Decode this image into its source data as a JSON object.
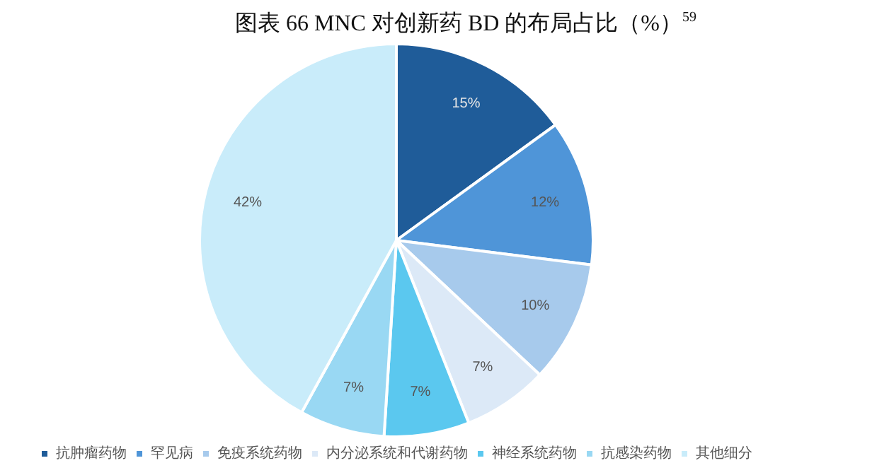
{
  "chart_data": {
    "type": "pie",
    "title": "图表 66 MNC 对创新药 BD 的布局占比（%）$^{59}$",
    "categories": [
      "抗肿瘤药物",
      "罕见病",
      "免疫系统药物",
      "内分泌系统和代谢药物",
      "神经系统药物",
      "抗感染药物",
      "其他细分"
    ],
    "values": [
      15,
      12,
      10,
      7,
      7,
      7,
      42
    ],
    "colors": [
      "#1f5c99",
      "#4f95d8",
      "#a7caec",
      "#dce9f7",
      "#5bc8ef",
      "#99d8f3",
      "#c9ecfa"
    ],
    "value_labels": [
      "15%",
      "12%",
      "10%",
      "7%",
      "7%",
      "7%",
      "42%"
    ],
    "legend": "bottom"
  }
}
